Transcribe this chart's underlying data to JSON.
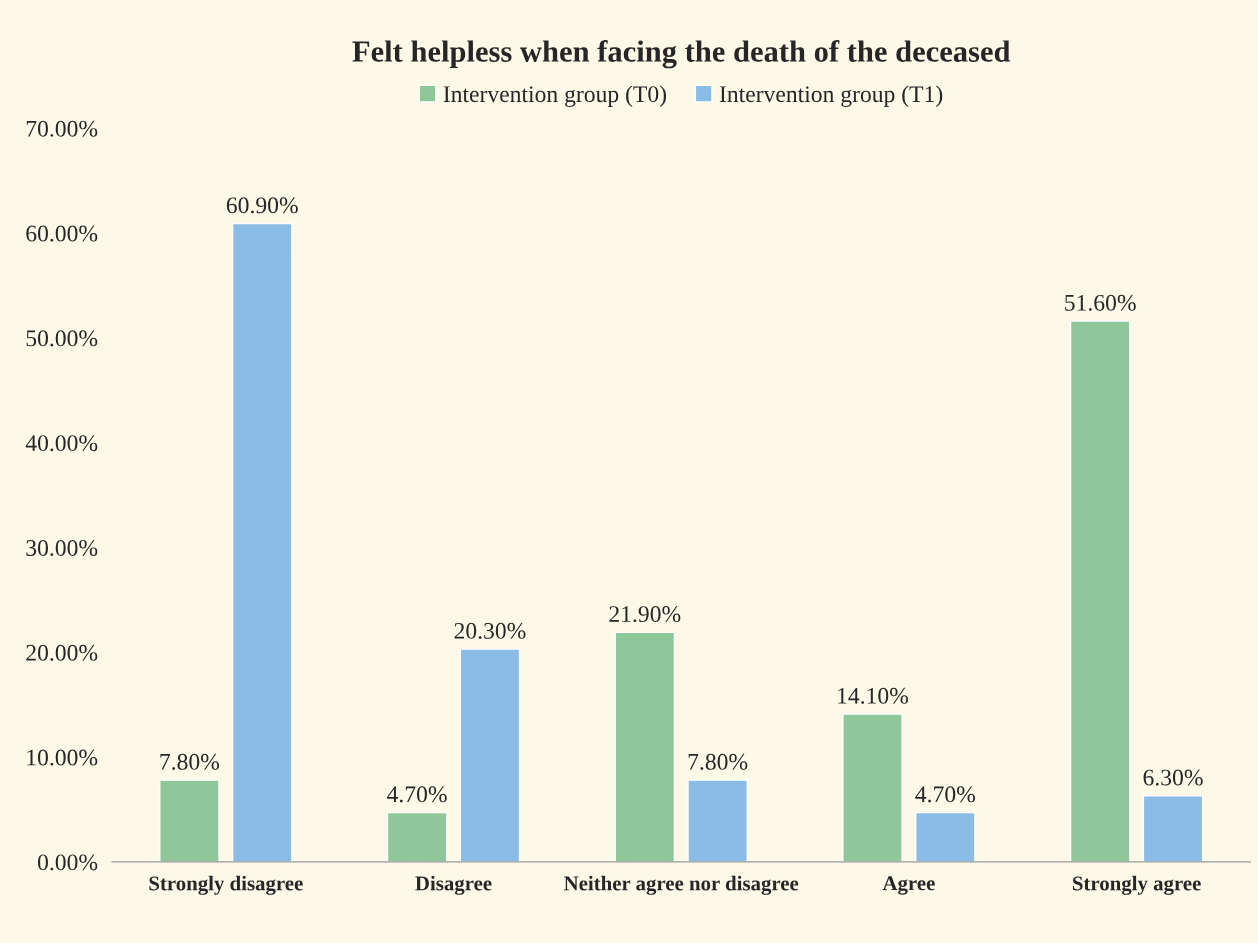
{
  "chart_data": {
    "type": "bar",
    "title": "Felt helpless when facing the death of the deceased",
    "categories": [
      "Strongly disagree",
      "Disagree",
      "Neither agree nor disagree",
      "Agree",
      "Strongly agree"
    ],
    "series": [
      {
        "name": "Intervention group (T0)",
        "color": "#8fc79a",
        "values": [
          7.8,
          4.7,
          21.9,
          14.1,
          51.6
        ],
        "value_labels": [
          "7.80%",
          "4.70%",
          "21.90%",
          "14.10%",
          "51.60%"
        ]
      },
      {
        "name": "Intervention group (T1)",
        "color": "#8bbce6",
        "values": [
          60.9,
          20.3,
          7.8,
          4.7,
          6.3
        ],
        "value_labels": [
          "60.90%",
          "20.30%",
          "7.80%",
          "4.70%",
          "6.30%"
        ]
      }
    ],
    "ylim": [
      0,
      70
    ],
    "yticks": [
      {
        "value": 0,
        "label": "0.00%"
      },
      {
        "value": 10,
        "label": "10.00%"
      },
      {
        "value": 20,
        "label": "20.00%"
      },
      {
        "value": 30,
        "label": "30.00%"
      },
      {
        "value": 40,
        "label": "40.00%"
      },
      {
        "value": 50,
        "label": "50.00%"
      },
      {
        "value": 60,
        "label": "60.00%"
      },
      {
        "value": 70,
        "label": "70.00%"
      }
    ],
    "grid": false,
    "legend": "top"
  }
}
